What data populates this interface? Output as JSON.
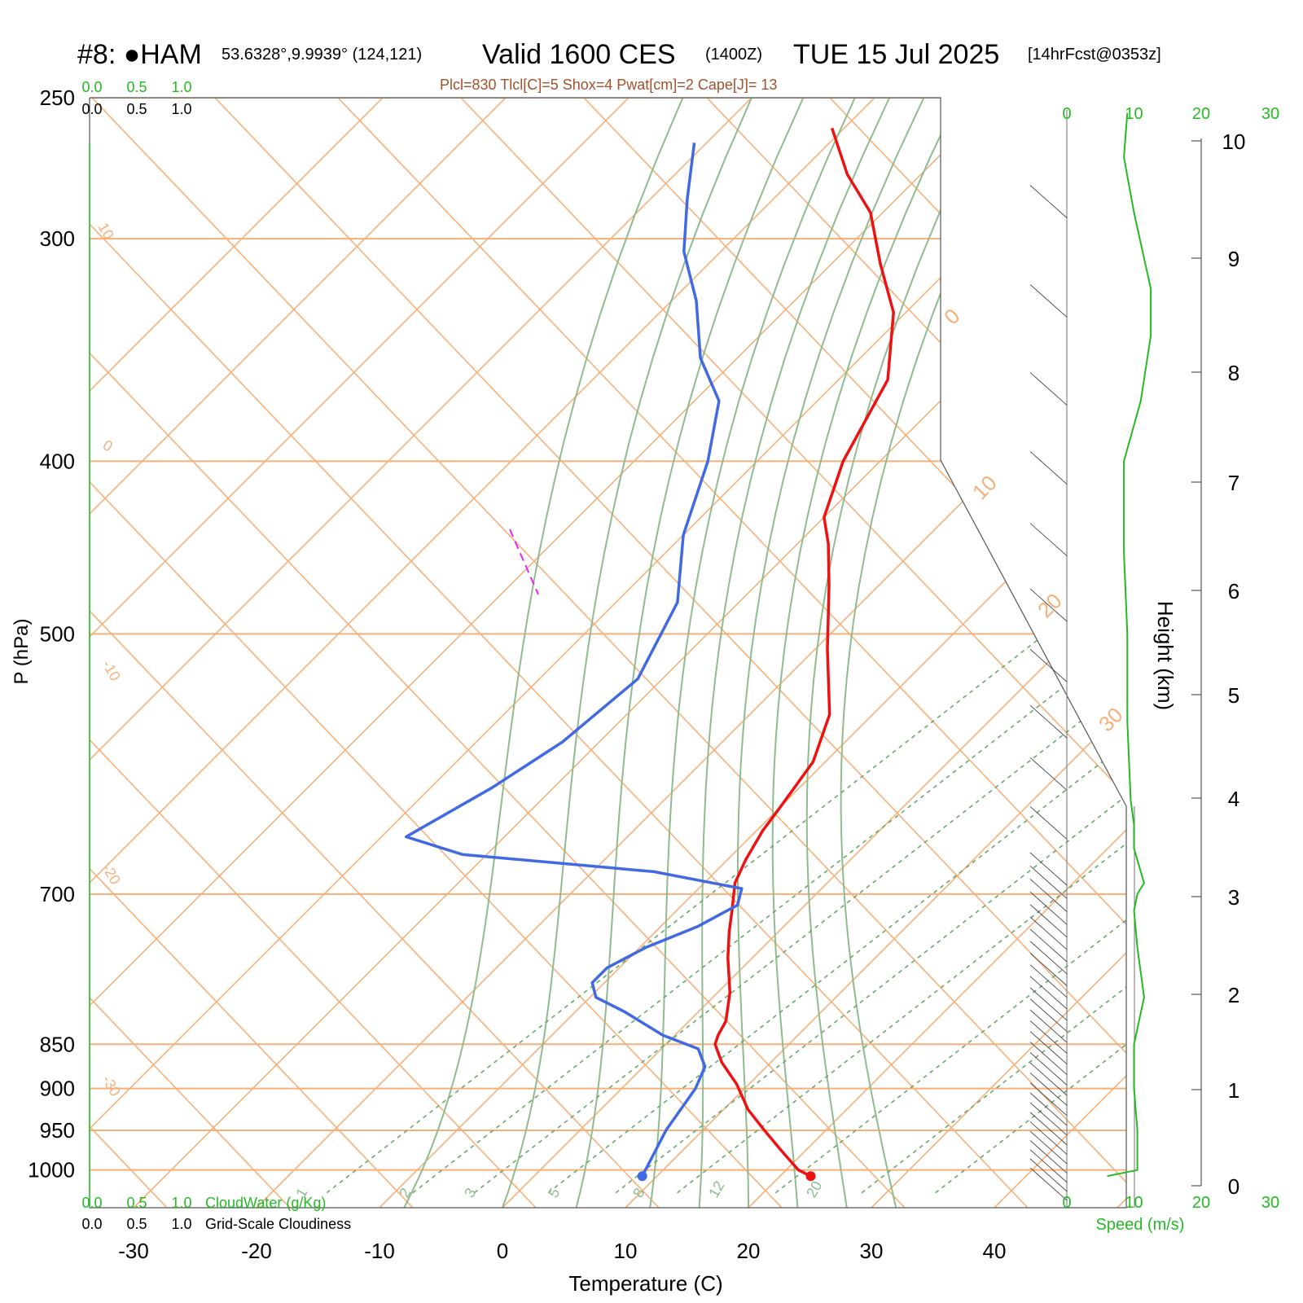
{
  "header": {
    "station": "#8: ●HAM",
    "coords": "53.6328°,9.9939° (124,121)",
    "valid": "Valid 1600 CES",
    "zulu": "(1400Z)",
    "date": "TUE 15 Jul 2025",
    "forecast": "[14hrFcst@0353z]",
    "params": "Plcl=830 Tlcl[C]=5 Shox=4 Pwat[cm]=2 Cape[J]= 13"
  },
  "colors": {
    "temperature": "#ee1111",
    "dewpoint": "#4169e1",
    "isotherm": "#f5b07a",
    "moist_adiabat": "#8fbc8f",
    "mixing_ratio": "#6aa86a",
    "cloud": "#22bb22",
    "wind_speed": "#22bb22",
    "parcel": "#ee22ee"
  },
  "axes": {
    "x_title": "Temperature (C)",
    "y_title": "P (hPa)",
    "height_title": "Height (km)",
    "speed_title": "Speed (m/s)"
  },
  "cloud_panel": {
    "top_green": [
      "0.0",
      "0.5",
      "1.0"
    ],
    "top_black": [
      "0.0",
      "0.5",
      "1.0"
    ],
    "bottom_green": [
      "0.0",
      "0.5",
      "1.0"
    ],
    "bottom_black": [
      "0.0",
      "0.5",
      "1.0"
    ],
    "bottom_green_label": "CloudWater (g/Kg)",
    "bottom_black_label": "Grid-Scale Cloudiness"
  },
  "chart_data": {
    "type": "line",
    "xlabel": "Temperature (C)",
    "ylabel": "P (hPa)",
    "xlim": [
      -34,
      36
    ],
    "ylim": [
      1050,
      250
    ],
    "y_scale": "log",
    "x_ticks": [
      -30,
      -20,
      -10,
      0,
      10,
      20,
      30,
      40
    ],
    "y_ticks": [
      250,
      300,
      400,
      500,
      700,
      850,
      900,
      950,
      1000
    ],
    "isotherm_labels": [
      "10",
      "0",
      "-10",
      "-20",
      "-30",
      "0",
      "10",
      "20",
      "30"
    ],
    "mixing_ratio_labels": [
      "1",
      "2",
      "3",
      "5",
      "8",
      "12",
      "20"
    ],
    "series": [
      {
        "name": "Temperature",
        "points": [
          [
            22.5,
            1008
          ],
          [
            21,
            1000
          ],
          [
            18,
            975
          ],
          [
            15,
            950
          ],
          [
            12,
            925
          ],
          [
            9,
            895
          ],
          [
            6,
            870
          ],
          [
            4,
            850
          ],
          [
            3.5,
            840
          ],
          [
            3,
            825
          ],
          [
            1,
            795
          ],
          [
            -2,
            760
          ],
          [
            -4,
            735
          ],
          [
            -5.5,
            715
          ],
          [
            -7.5,
            690
          ],
          [
            -8.5,
            670
          ],
          [
            -9.5,
            645
          ],
          [
            -10,
            625
          ],
          [
            -11,
            590
          ],
          [
            -13.5,
            555
          ],
          [
            -19,
            510
          ],
          [
            -24,
            470
          ],
          [
            -27.5,
            445
          ],
          [
            -30,
            430
          ],
          [
            -33,
            400
          ],
          [
            -36,
            360
          ],
          [
            -41,
            330
          ],
          [
            -46,
            310
          ],
          [
            -51,
            290
          ],
          [
            -56,
            276
          ],
          [
            -61,
            260
          ]
        ],
        "_note": "values in deg C along temperature profile"
      },
      {
        "name": "Dewpoint",
        "points": [
          [
            8.8,
            1008
          ],
          [
            7,
            950
          ],
          [
            6,
            900
          ],
          [
            5,
            875
          ],
          [
            3,
            855
          ],
          [
            -1,
            840
          ],
          [
            -6,
            815
          ],
          [
            -9.5,
            800
          ],
          [
            -11,
            785
          ],
          [
            -11,
            770
          ],
          [
            -9.5,
            750
          ],
          [
            -7,
            730
          ],
          [
            -5.5,
            710
          ],
          [
            -6.5,
            695
          ],
          [
            -15,
            680
          ],
          [
            -32,
            665
          ],
          [
            -38,
            650
          ],
          [
            -35,
            610
          ],
          [
            -33,
            575
          ],
          [
            -32,
            530
          ],
          [
            -35,
            480
          ],
          [
            -40,
            440
          ],
          [
            -44,
            400
          ],
          [
            -48,
            370
          ],
          [
            -53,
            350
          ],
          [
            -58,
            325
          ],
          [
            -63,
            305
          ],
          [
            -67,
            285
          ],
          [
            -71,
            265
          ]
        ]
      }
    ],
    "wind_speed": {
      "xlim": [
        0,
        20
      ],
      "x_ticks": [
        0,
        10,
        20
      ],
      "height_ticks_km": [
        0,
        1,
        2,
        3,
        4,
        5,
        6,
        7,
        8,
        9,
        10
      ],
      "values_ms": [
        [
          6,
          1008
        ],
        [
          10.5,
          1000
        ],
        [
          10.5,
          950
        ],
        [
          10,
          900
        ],
        [
          10,
          850
        ],
        [
          11.5,
          800
        ],
        [
          10.5,
          750
        ],
        [
          10,
          715
        ],
        [
          10.5,
          700
        ],
        [
          11.5,
          690
        ],
        [
          10,
          660
        ],
        [
          10,
          640
        ],
        [
          9.5,
          620
        ],
        [
          9,
          560
        ],
        [
          9,
          500
        ],
        [
          8.5,
          450
        ],
        [
          8.5,
          400
        ],
        [
          11,
          370
        ],
        [
          12.5,
          340
        ],
        [
          12.5,
          320
        ],
        [
          10,
          290
        ],
        [
          8.5,
          270
        ],
        [
          9,
          255
        ]
      ]
    }
  }
}
